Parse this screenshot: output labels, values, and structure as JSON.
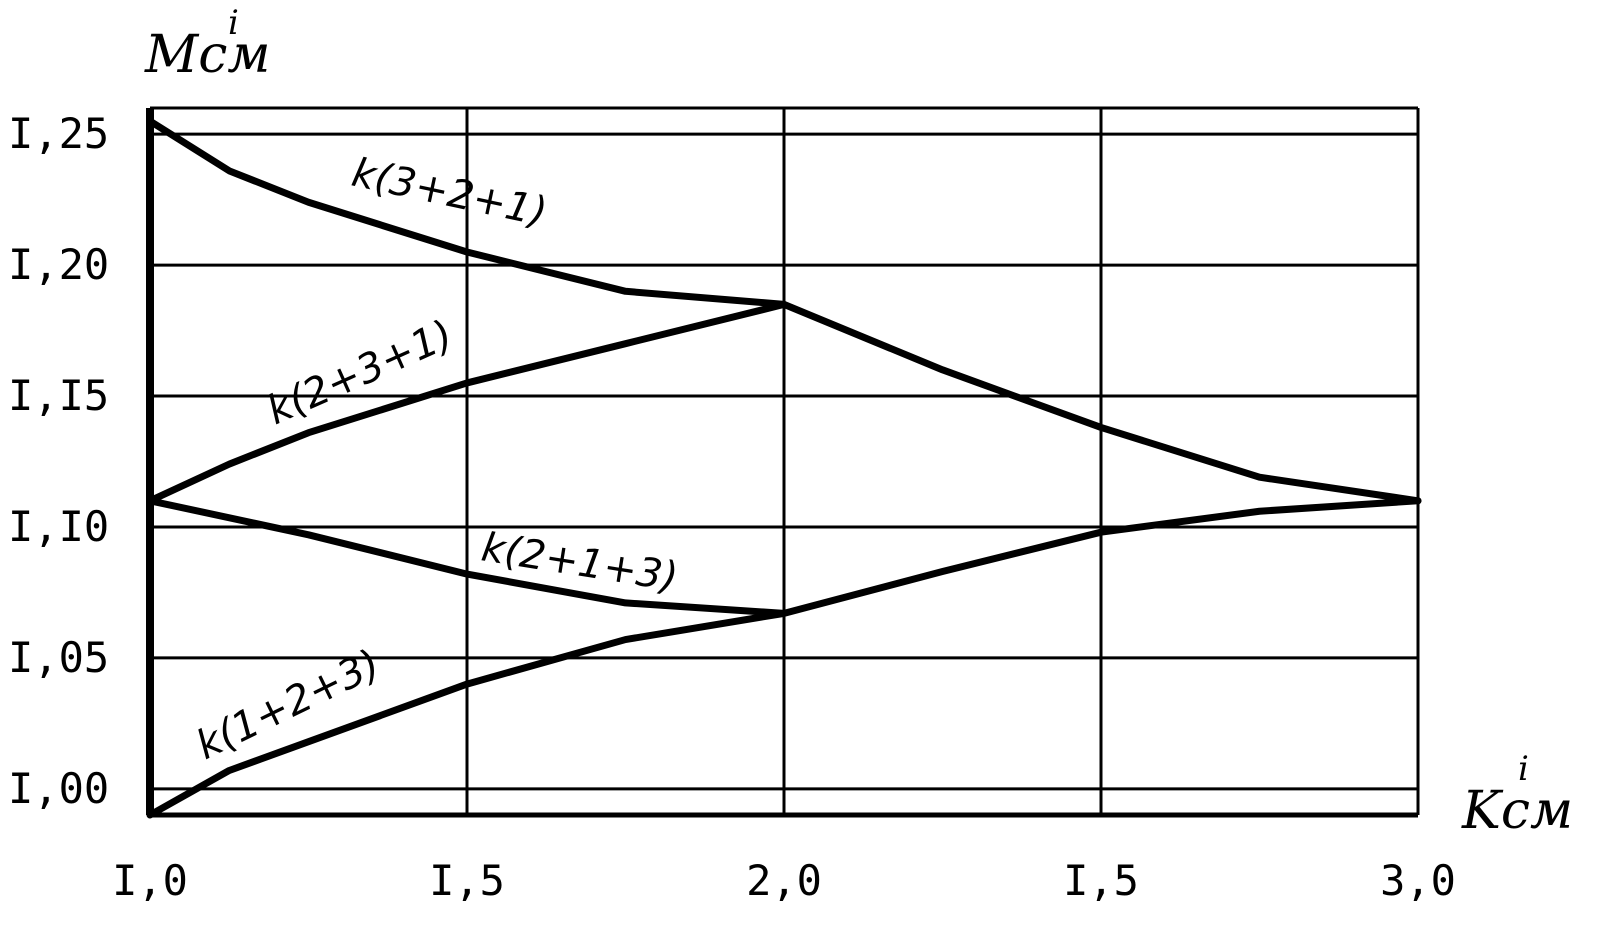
{
  "chart_data": {
    "type": "line",
    "ylabel": "Мсм",
    "ylabel_superscript": "i",
    "xlabel": "Kсм",
    "xlabel_superscript": "i",
    "x_ticks": [
      "I,0",
      "I,5",
      "2,0",
      "I,5",
      "3,0"
    ],
    "y_ticks": [
      "I,00",
      "I,05",
      "I,I0",
      "I,I5",
      "I,20",
      "I,25"
    ],
    "y_tick_values": [
      1.0,
      1.05,
      1.1,
      1.15,
      1.2,
      1.25
    ],
    "x_tick_positions": [
      0,
      1,
      2,
      3,
      4
    ],
    "xlim": [
      0,
      4
    ],
    "ylim": [
      0.99,
      1.26
    ],
    "grid": true,
    "series": [
      {
        "name": "k(3+2+1)",
        "points": [
          [
            0,
            1.255
          ],
          [
            0.25,
            1.236
          ],
          [
            0.5,
            1.224
          ],
          [
            1.0,
            1.205
          ],
          [
            1.5,
            1.19
          ],
          [
            2.0,
            1.185
          ],
          [
            2.5,
            1.16
          ],
          [
            3.0,
            1.138
          ],
          [
            3.5,
            1.119
          ],
          [
            4.0,
            1.11
          ]
        ]
      },
      {
        "name": "k(2+3+1)",
        "points": [
          [
            0,
            1.11
          ],
          [
            0.25,
            1.124
          ],
          [
            0.5,
            1.136
          ],
          [
            1.0,
            1.155
          ],
          [
            1.5,
            1.17
          ],
          [
            2.0,
            1.185
          ]
        ]
      },
      {
        "name": "k(2+1+3)",
        "points": [
          [
            0,
            1.11
          ],
          [
            0.5,
            1.097
          ],
          [
            1.0,
            1.082
          ],
          [
            1.5,
            1.071
          ],
          [
            2.0,
            1.067
          ]
        ]
      },
      {
        "name": "k(1+2+3)",
        "points": [
          [
            0,
            0.99
          ],
          [
            0.25,
            1.007
          ],
          [
            0.5,
            1.018
          ],
          [
            1.0,
            1.04
          ],
          [
            1.5,
            1.057
          ],
          [
            2.0,
            1.067
          ],
          [
            2.5,
            1.083
          ],
          [
            3.0,
            1.098
          ],
          [
            3.5,
            1.106
          ],
          [
            4.0,
            1.11
          ]
        ]
      }
    ],
    "curve_labels": [
      "k(3+2+1)",
      "k(2+3+1)",
      "k(2+1+3)",
      "k(1+2+3)"
    ]
  }
}
